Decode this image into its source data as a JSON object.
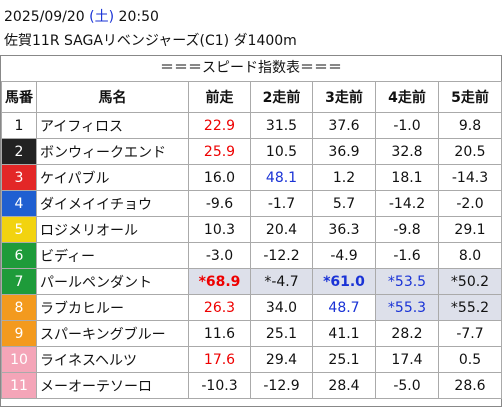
{
  "header": {
    "date": "2025/09/20",
    "weekday": "(土)",
    "time": "20:50",
    "race": "佐賀11R SAGAリベンジャーズ(C1) ダ1400m"
  },
  "table": {
    "title": "＝＝＝スピード指数表＝＝＝",
    "columns": [
      "馬番",
      "馬名",
      "前走",
      "2走前",
      "3走前",
      "4走前",
      "5走前"
    ],
    "rows": [
      [
        "1",
        "アイフィロス",
        "22.9",
        "31.5",
        "37.6",
        "-1.0",
        "9.8"
      ],
      [
        "2",
        "ボンウィークエンド",
        "25.9",
        "10.5",
        "36.9",
        "32.8",
        "20.5"
      ],
      [
        "3",
        "ケイパブル",
        "16.0",
        "48.1",
        "1.2",
        "18.1",
        "-14.3"
      ],
      [
        "4",
        "ダイメイイチョウ",
        "-9.6",
        "-1.7",
        "5.7",
        "-14.2",
        "-2.0"
      ],
      [
        "5",
        "ロジメリオール",
        "10.3",
        "20.4",
        "36.3",
        "-9.8",
        "29.1"
      ],
      [
        "6",
        "ビディー",
        "-3.0",
        "-12.2",
        "-4.9",
        "-1.6",
        "8.0"
      ],
      [
        "7",
        "パールペンダント",
        "*68.9",
        "*-4.7",
        "*61.0",
        "*53.5",
        "*50.2"
      ],
      [
        "8",
        "ラブカヒルー",
        "26.3",
        "34.0",
        "48.7",
        "*55.3",
        "*55.2"
      ],
      [
        "9",
        "スパーキングブルー",
        "11.6",
        "25.1",
        "41.1",
        "28.2",
        "-7.7"
      ],
      [
        "10",
        "ライネスヘルツ",
        "17.6",
        "29.4",
        "25.1",
        "17.4",
        "0.5"
      ],
      [
        "11",
        "メーオーテソーロ",
        "-10.3",
        "-12.9",
        "28.4",
        "-5.0",
        "28.6"
      ]
    ]
  }
}
